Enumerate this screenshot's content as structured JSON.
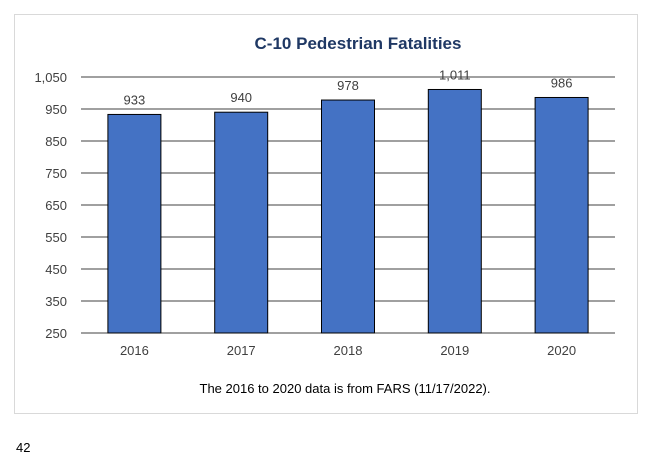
{
  "page": {
    "number": "42"
  },
  "chart_data": {
    "type": "bar",
    "title": "C-10 Pedestrian Fatalities",
    "categories": [
      "2016",
      "2017",
      "2018",
      "2019",
      "2020"
    ],
    "values": [
      933,
      940,
      978,
      1011,
      986
    ],
    "value_labels": [
      "933",
      "940",
      "978",
      "1,011",
      "986"
    ],
    "ylim": [
      250,
      1050
    ],
    "yticks": [
      250,
      350,
      450,
      550,
      650,
      750,
      850,
      950,
      1050
    ],
    "ytick_labels": [
      "250",
      "350",
      "450",
      "550",
      "650",
      "750",
      "850",
      "950",
      "1,050"
    ],
    "grid": true,
    "legend": "none",
    "note": "The 2016 to 2020 data is from FARS (11/17/2022).",
    "colors": {
      "bar": "#4472c4",
      "bar_edge": "#000000",
      "grid": "#000000",
      "title": "#1f3864"
    }
  }
}
